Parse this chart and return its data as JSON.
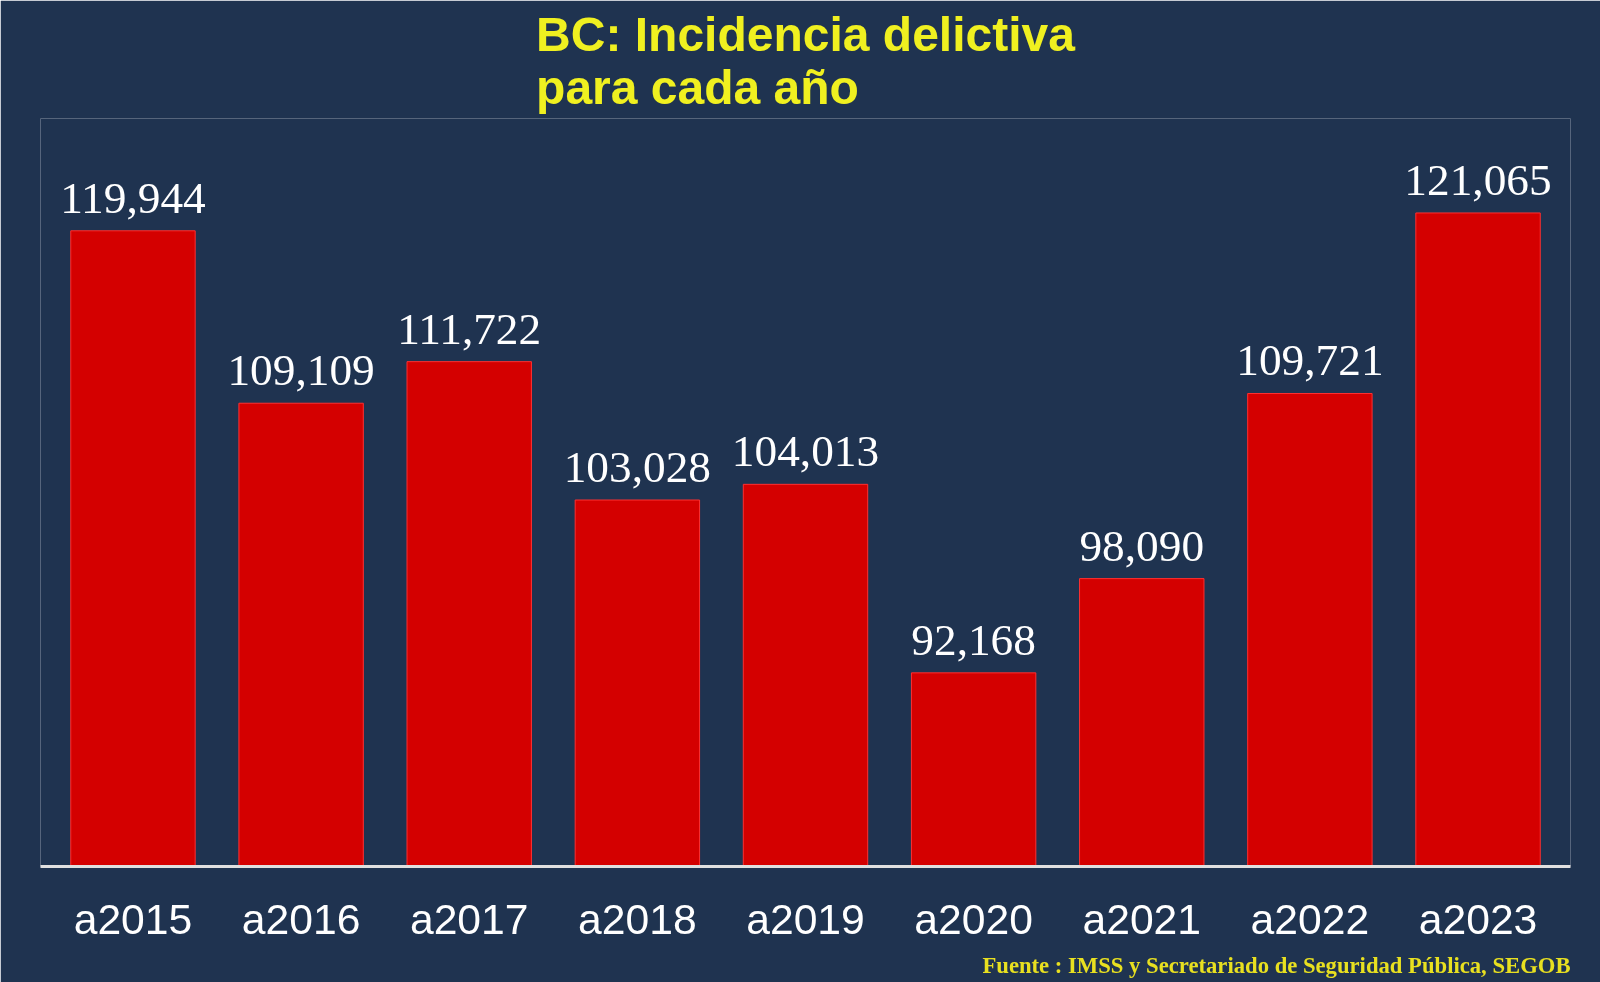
{
  "chart_data": {
    "type": "bar",
    "title": "BC: Incidencia delictiva\npara cada año",
    "categories": [
      "a2015",
      "a2016",
      "a2017",
      "a2018",
      "a2019",
      "a2020",
      "a2021",
      "a2022",
      "a2023"
    ],
    "values": [
      119944,
      109109,
      111722,
      103028,
      104013,
      92168,
      98090,
      109721,
      121065
    ],
    "value_labels": [
      "119,944",
      "109,109",
      "111,722",
      "103,028",
      "104,013",
      "92,168",
      "98,090",
      "109,721",
      "121,065"
    ],
    "color": "#d40000",
    "ylim": [
      80000,
      127000
    ],
    "tick_labels": "x",
    "grid": false,
    "annotations": [
      "Fuente : IMSS y Secretariado de Seguridad Pública, SEGOB"
    ]
  }
}
